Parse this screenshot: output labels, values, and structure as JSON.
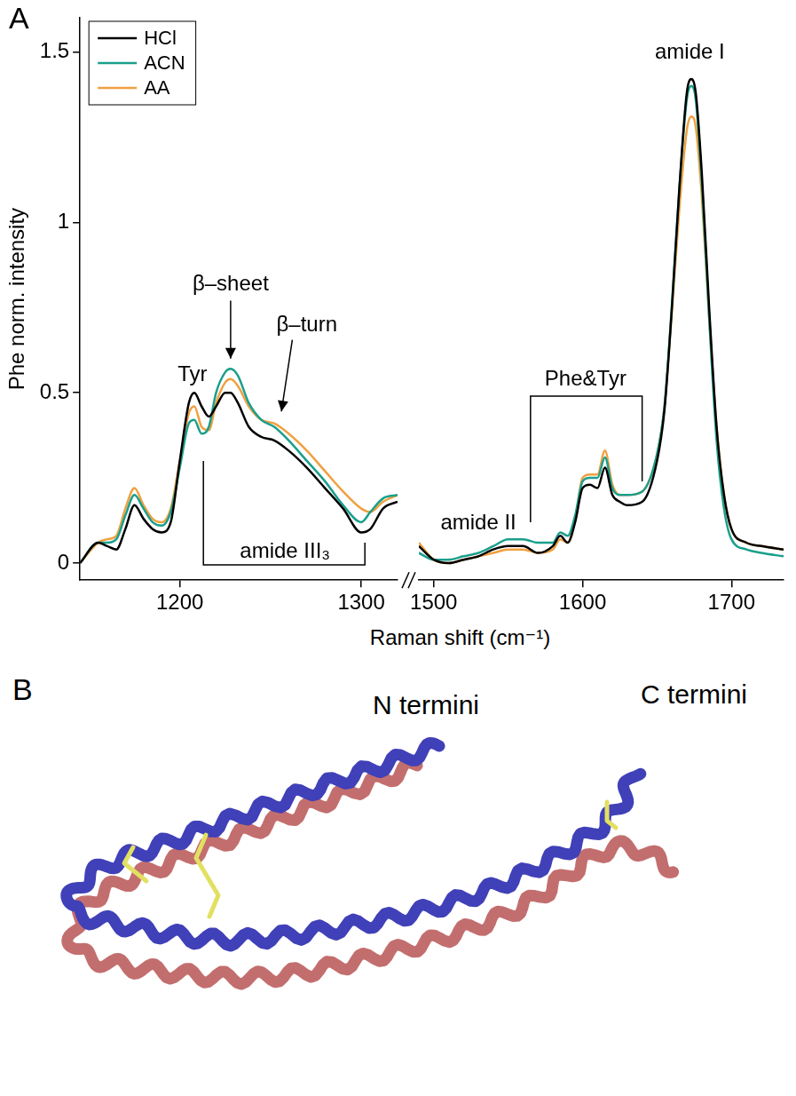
{
  "panel_label": "A",
  "chart_data": [
    {
      "type": "line",
      "xlabel": "Raman shift (cm⁻¹)",
      "ylabel": "Phe norm. intensity",
      "x": [
        1145,
        1155,
        1160,
        1165,
        1170,
        1175,
        1180,
        1185,
        1190,
        1195,
        1200,
        1205,
        1208,
        1212,
        1216,
        1220,
        1225,
        1228,
        1232,
        1238,
        1245,
        1252,
        1260,
        1270,
        1280,
        1290,
        1300,
        1305,
        1312,
        1320
      ],
      "series": [
        {
          "name": "HCl",
          "color": "#000000",
          "values": [
            0,
            0.06,
            0.05,
            0.04,
            0.1,
            0.17,
            0.13,
            0.1,
            0.09,
            0.12,
            0.3,
            0.47,
            0.5,
            0.46,
            0.43,
            0.46,
            0.5,
            0.5,
            0.47,
            0.4,
            0.37,
            0.36,
            0.33,
            0.28,
            0.22,
            0.16,
            0.09,
            0.1,
            0.16,
            0.18
          ]
        },
        {
          "name": "ACN",
          "color": "#1a9f8c",
          "values": [
            0,
            0.06,
            0.06,
            0.07,
            0.14,
            0.2,
            0.16,
            0.12,
            0.11,
            0.15,
            0.28,
            0.41,
            0.42,
            0.38,
            0.4,
            0.5,
            0.56,
            0.57,
            0.55,
            0.47,
            0.42,
            0.4,
            0.36,
            0.3,
            0.24,
            0.17,
            0.12,
            0.15,
            0.19,
            0.2
          ]
        },
        {
          "name": "AA",
          "color": "#f0a040",
          "values": [
            0,
            0.06,
            0.07,
            0.08,
            0.16,
            0.22,
            0.17,
            0.13,
            0.12,
            0.16,
            0.3,
            0.44,
            0.46,
            0.4,
            0.39,
            0.47,
            0.53,
            0.54,
            0.52,
            0.46,
            0.42,
            0.41,
            0.38,
            0.33,
            0.27,
            0.21,
            0.16,
            0.15,
            0.18,
            0.2
          ]
        }
      ],
      "xlim": [
        1145,
        1320
      ],
      "xticks": [
        1200,
        1300
      ],
      "ylim": [
        -0.05,
        1.6
      ],
      "yticks": [
        0,
        0.5,
        1,
        1.5
      ],
      "grid": false,
      "legend": "upper left",
      "annotations": [
        {
          "text": "Tyr"
        },
        {
          "text": "β–sheet"
        },
        {
          "text": "β–turn"
        },
        {
          "text": "amide III₃"
        }
      ]
    },
    {
      "type": "line",
      "x": [
        1490,
        1500,
        1510,
        1520,
        1530,
        1540,
        1550,
        1560,
        1570,
        1580,
        1585,
        1590,
        1595,
        1600,
        1605,
        1610,
        1615,
        1620,
        1625,
        1630,
        1640,
        1650,
        1655,
        1660,
        1665,
        1670,
        1673,
        1676,
        1680,
        1685,
        1690,
        1695,
        1700,
        1710,
        1720,
        1735
      ],
      "series": [
        {
          "color": "#000000",
          "values": [
            0.05,
            0.01,
            0,
            0.01,
            0.02,
            0.04,
            0.05,
            0.05,
            0.03,
            0.05,
            0.08,
            0.06,
            0.12,
            0.22,
            0.23,
            0.22,
            0.28,
            0.2,
            0.18,
            0.17,
            0.18,
            0.3,
            0.45,
            0.75,
            1.1,
            1.38,
            1.42,
            1.38,
            1.15,
            0.75,
            0.4,
            0.2,
            0.1,
            0.06,
            0.05,
            0.04
          ]
        },
        {
          "color": "#1a9f8c",
          "values": [
            0.03,
            0.01,
            0.01,
            0.02,
            0.03,
            0.05,
            0.07,
            0.07,
            0.06,
            0.06,
            0.09,
            0.08,
            0.14,
            0.24,
            0.25,
            0.25,
            0.31,
            0.22,
            0.2,
            0.2,
            0.21,
            0.32,
            0.46,
            0.76,
            1.1,
            1.36,
            1.4,
            1.36,
            1.12,
            0.72,
            0.36,
            0.16,
            0.07,
            0.04,
            0.03,
            0.02
          ]
        },
        {
          "color": "#f0a040",
          "values": [
            0.06,
            0.01,
            0,
            0.01,
            0.02,
            0.03,
            0.04,
            0.04,
            0.03,
            0.04,
            0.07,
            0.06,
            0.13,
            0.25,
            0.26,
            0.26,
            0.33,
            0.23,
            0.2,
            0.2,
            0.21,
            0.32,
            0.46,
            0.74,
            1.04,
            1.27,
            1.31,
            1.28,
            1.08,
            0.72,
            0.4,
            0.2,
            0.1,
            0.06,
            0.05,
            0.04
          ]
        }
      ],
      "xlim": [
        1490,
        1735
      ],
      "xticks": [
        1500,
        1600,
        1700
      ],
      "ylim": [
        -0.05,
        1.6
      ],
      "grid": false,
      "tick_labels": "x",
      "annotations": [
        {
          "text": "amide II"
        },
        {
          "text": "Phe&Tyr"
        },
        {
          "text": "amide I"
        }
      ]
    }
  ],
  "diagram": {
    "panel_label": "B",
    "labels": [
      "N termini",
      "C termini"
    ]
  }
}
